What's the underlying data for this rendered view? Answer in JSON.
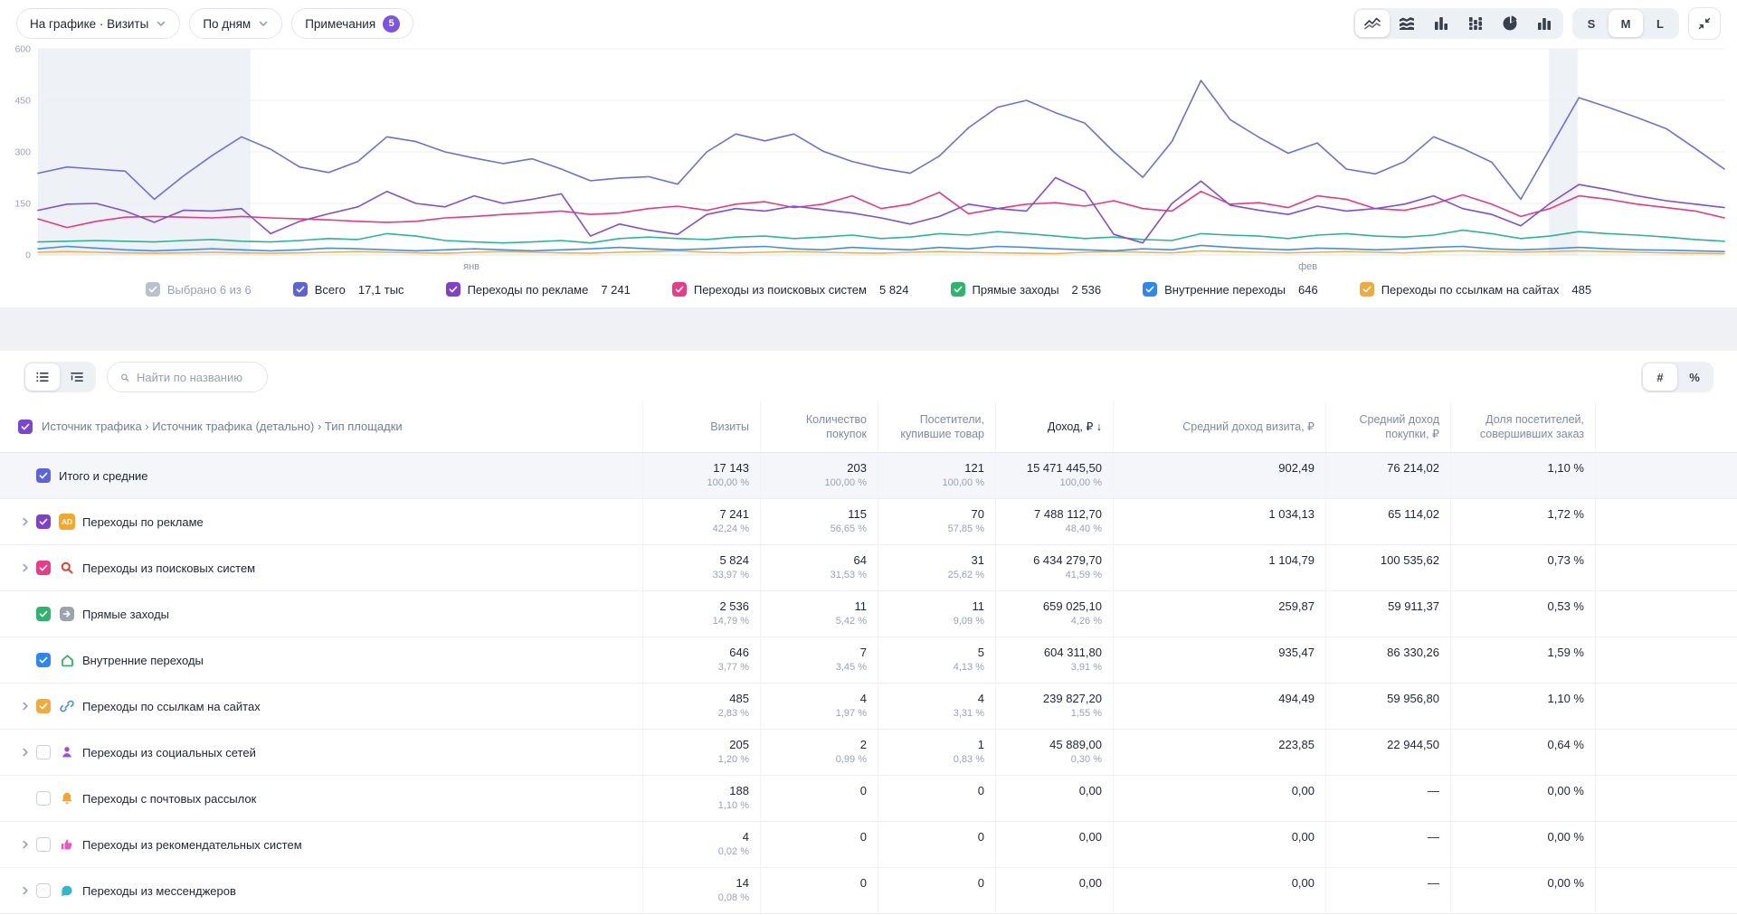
{
  "toolbar": {
    "metric_button": "На графике · Визиты",
    "period_button": "По дням",
    "notes_button": "Примечания",
    "notes_count": "5"
  },
  "chart_controls": {
    "type_icons": [
      "line-chart",
      "stacked-area-chart",
      "bar-chart",
      "stacked-bar-chart",
      "pie-chart",
      "histogram"
    ],
    "active_type": "line-chart",
    "sizes": [
      "S",
      "M",
      "L"
    ],
    "active_size": "M",
    "collapse_icon": "collapse-icon"
  },
  "chart_data": {
    "type": "line",
    "x_unit": "day",
    "x_month_labels": [
      "янв",
      "фев"
    ],
    "x_month_positions": [
      0.257,
      0.753
    ],
    "ylim": [
      0,
      600
    ],
    "y_ticks": [
      0,
      150,
      300,
      450,
      600
    ],
    "grid": true,
    "legend_position": "bottom",
    "highlight_bands": [
      {
        "from": 0.0,
        "to": 0.126
      },
      {
        "from": 0.896,
        "to": 0.913
      }
    ],
    "series": [
      {
        "name": "Всего",
        "color": "#6d6fe0",
        "total_label": "17,1 тыс",
        "values": [
          238,
          256,
          250,
          244,
          162,
          230,
          290,
          344,
          308,
          256,
          240,
          272,
          344,
          330,
          300,
          282,
          266,
          280,
          250,
          216,
          224,
          228,
          206,
          300,
          352,
          332,
          352,
          302,
          272,
          252,
          238,
          288,
          370,
          430,
          450,
          414,
          384,
          300,
          226,
          330,
          508,
          394,
          342,
          296,
          326,
          250,
          236,
          272,
          344,
          310,
          270,
          162,
          310,
          458,
          430,
          400,
          368,
          310,
          250
        ]
      },
      {
        "name": "Переходы по рекламе",
        "color": "#7e4fd8",
        "total_label": "7 241",
        "values": [
          130,
          148,
          150,
          128,
          95,
          130,
          128,
          135,
          62,
          98,
          120,
          140,
          185,
          150,
          140,
          172,
          150,
          162,
          178,
          55,
          90,
          72,
          60,
          118,
          135,
          128,
          142,
          132,
          122,
          108,
          90,
          112,
          148,
          135,
          128,
          225,
          185,
          60,
          35,
          150,
          215,
          145,
          130,
          118,
          142,
          128,
          135,
          148,
          172,
          135,
          118,
          85,
          150,
          205,
          190,
          172,
          158,
          148,
          138
        ]
      },
      {
        "name": "Переходы из поисковых систем",
        "color": "#e83a80",
        "total_label": "5 824",
        "values": [
          105,
          80,
          98,
          110,
          112,
          110,
          108,
          112,
          108,
          105,
          102,
          98,
          95,
          98,
          108,
          112,
          118,
          122,
          128,
          118,
          122,
          135,
          142,
          130,
          148,
          155,
          138,
          148,
          172,
          135,
          148,
          182,
          120,
          135,
          148,
          152,
          142,
          158,
          135,
          128,
          185,
          148,
          152,
          138,
          172,
          162,
          135,
          130,
          148,
          175,
          148,
          112,
          135,
          172,
          162,
          148,
          138,
          128,
          108
        ]
      },
      {
        "name": "Прямые заходы",
        "color": "#2bb595",
        "total_label": "2 536",
        "values": [
          38,
          40,
          42,
          40,
          38,
          42,
          45,
          40,
          38,
          42,
          48,
          45,
          62,
          55,
          42,
          38,
          35,
          38,
          42,
          35,
          48,
          52,
          48,
          45,
          52,
          55,
          48,
          52,
          58,
          48,
          52,
          62,
          58,
          68,
          62,
          55,
          48,
          52,
          45,
          42,
          62,
          58,
          55,
          48,
          58,
          62,
          55,
          52,
          58,
          72,
          62,
          48,
          55,
          68,
          62,
          58,
          52,
          45,
          40
        ]
      },
      {
        "name": "Внутренние переходы",
        "color": "#3f8ef2",
        "total_label": "646",
        "values": [
          18,
          25,
          20,
          15,
          12,
          15,
          18,
          15,
          12,
          15,
          20,
          18,
          15,
          12,
          15,
          18,
          15,
          12,
          15,
          18,
          22,
          18,
          15,
          18,
          22,
          25,
          18,
          15,
          22,
          18,
          15,
          22,
          18,
          25,
          22,
          18,
          15,
          12,
          18,
          15,
          28,
          22,
          18,
          15,
          20,
          18,
          15,
          18,
          22,
          25,
          18,
          15,
          18,
          22,
          18,
          15,
          14,
          12,
          10
        ]
      },
      {
        "name": "Переходы по ссылкам на сайтах",
        "color": "#f0b04a",
        "total_label": "485",
        "values": [
          8,
          10,
          8,
          6,
          5,
          6,
          8,
          6,
          5,
          6,
          8,
          10,
          8,
          6,
          5,
          8,
          10,
          8,
          6,
          5,
          8,
          10,
          12,
          8,
          6,
          8,
          10,
          8,
          6,
          5,
          8,
          10,
          8,
          6,
          5,
          4,
          8,
          10,
          8,
          6,
          12,
          10,
          8,
          6,
          8,
          10,
          8,
          6,
          10,
          12,
          10,
          8,
          10,
          12,
          10,
          8,
          6,
          5,
          4
        ]
      }
    ]
  },
  "legend": {
    "selected": {
      "label": "Выбрано 6 из 6",
      "color": "#b9c1cc"
    },
    "items": [
      {
        "label": "Всего",
        "value": "17,1 тыс",
        "color": "#5d63d8"
      },
      {
        "label": "Переходы по рекламе",
        "value": "7 241",
        "color": "#8040cc"
      },
      {
        "label": "Переходы из поисковых систем",
        "value": "5 824",
        "color": "#e83d86"
      },
      {
        "label": "Прямые заходы",
        "value": "2 536",
        "color": "#2eb56d"
      },
      {
        "label": "Внутренние переходы",
        "value": "646",
        "color": "#2e87f0"
      },
      {
        "label": "Переходы по ссылкам на сайтах",
        "value": "485",
        "color": "#f0ab3c"
      }
    ]
  },
  "table_controls": {
    "view_icons": [
      "flat-list",
      "tree-list"
    ],
    "active_view": "flat-list",
    "search_placeholder": "Найти по названию",
    "number_toggle": [
      "#",
      "%"
    ],
    "active_number_toggle": "#"
  },
  "table": {
    "columns": [
      {
        "label": "Источник трафика › Источник трафика (детально) › Тип площадки",
        "type": "name"
      },
      {
        "label": "Визиты"
      },
      {
        "label": "Количество покупок"
      },
      {
        "label": "Посетители, купившие товар"
      },
      {
        "label": "Доход, ₽",
        "sorted": "desc"
      },
      {
        "label": "Средний доход визита, ₽"
      },
      {
        "label": "Средний доход покупки, ₽"
      },
      {
        "label": "Доля посетителей, совершивших заказ"
      }
    ],
    "rows": [
      {
        "name": "Итого и средние",
        "icon": null,
        "checked": true,
        "color": "#5d63d8",
        "expandable": false,
        "highlight": true,
        "cells": [
          [
            "17 143",
            "100,00 %"
          ],
          [
            "203",
            "100,00 %"
          ],
          [
            "121",
            "100,00 %"
          ],
          [
            "15 471 445,50",
            "100,00 %"
          ],
          [
            "902,49",
            null
          ],
          [
            "76 214,02",
            null
          ],
          [
            "1,10 %",
            null
          ]
        ]
      },
      {
        "name": "Переходы по рекламе",
        "icon": "ad",
        "checked": true,
        "color": "#8040cc",
        "expandable": true,
        "cells": [
          [
            "7 241",
            "42,24 %"
          ],
          [
            "115",
            "56,65 %"
          ],
          [
            "70",
            "57,85 %"
          ],
          [
            "7 488 112,70",
            "48,40 %"
          ],
          [
            "1 034,13",
            null
          ],
          [
            "65 114,02",
            null
          ],
          [
            "1,72 %",
            null
          ]
        ]
      },
      {
        "name": "Переходы из поисковых систем",
        "icon": "search",
        "checked": true,
        "color": "#e83d86",
        "expandable": true,
        "cells": [
          [
            "5 824",
            "33,97 %"
          ],
          [
            "64",
            "31,53 %"
          ],
          [
            "31",
            "25,62 %"
          ],
          [
            "6 434 279,70",
            "41,59 %"
          ],
          [
            "1 104,79",
            null
          ],
          [
            "100 535,62",
            null
          ],
          [
            "0,73 %",
            null
          ]
        ]
      },
      {
        "name": "Прямые заходы",
        "icon": "direct",
        "checked": true,
        "color": "#2eb56d",
        "expandable": false,
        "cells": [
          [
            "2 536",
            "14,79 %"
          ],
          [
            "11",
            "5,42 %"
          ],
          [
            "11",
            "9,09 %"
          ],
          [
            "659 025,10",
            "4,26 %"
          ],
          [
            "259,87",
            null
          ],
          [
            "59 911,37",
            null
          ],
          [
            "0,53 %",
            null
          ]
        ]
      },
      {
        "name": "Внутренние переходы",
        "icon": "internal",
        "checked": true,
        "color": "#2e87f0",
        "expandable": false,
        "cells": [
          [
            "646",
            "3,77 %"
          ],
          [
            "7",
            "3,45 %"
          ],
          [
            "5",
            "4,13 %"
          ],
          [
            "604 311,80",
            "3,91 %"
          ],
          [
            "935,47",
            null
          ],
          [
            "86 330,26",
            null
          ],
          [
            "1,59 %",
            null
          ]
        ]
      },
      {
        "name": "Переходы по ссылкам на сайтах",
        "icon": "link",
        "checked": true,
        "color": "#f0ab3c",
        "expandable": true,
        "cells": [
          [
            "485",
            "2,83 %"
          ],
          [
            "4",
            "1,97 %"
          ],
          [
            "4",
            "3,31 %"
          ],
          [
            "239 827,20",
            "1,55 %"
          ],
          [
            "494,49",
            null
          ],
          [
            "59 956,80",
            null
          ],
          [
            "1,10 %",
            null
          ]
        ]
      },
      {
        "name": "Переходы из социальных сетей",
        "icon": "social",
        "checked": false,
        "color": null,
        "expandable": true,
        "cells": [
          [
            "205",
            "1,20 %"
          ],
          [
            "2",
            "0,99 %"
          ],
          [
            "1",
            "0,83 %"
          ],
          [
            "45 889,00",
            "0,30 %"
          ],
          [
            "223,85",
            null
          ],
          [
            "22 944,50",
            null
          ],
          [
            "0,64 %",
            null
          ]
        ]
      },
      {
        "name": "Переходы с почтовых рассылок",
        "icon": "mail",
        "checked": false,
        "color": null,
        "expandable": false,
        "cells": [
          [
            "188",
            "1,10 %"
          ],
          [
            "0",
            null
          ],
          [
            "0",
            null
          ],
          [
            "0,00",
            null
          ],
          [
            "0,00",
            null
          ],
          [
            "—",
            null
          ],
          [
            "0,00 %",
            null
          ]
        ]
      },
      {
        "name": "Переходы из рекомендательных систем",
        "icon": "recommend",
        "checked": false,
        "color": null,
        "expandable": true,
        "cells": [
          [
            "4",
            "0,02 %"
          ],
          [
            "0",
            null
          ],
          [
            "0",
            null
          ],
          [
            "0,00",
            null
          ],
          [
            "0,00",
            null
          ],
          [
            "—",
            null
          ],
          [
            "0,00 %",
            null
          ]
        ]
      },
      {
        "name": "Переходы из мессенджеров",
        "icon": "messenger",
        "checked": false,
        "color": null,
        "expandable": true,
        "cells": [
          [
            "14",
            "0,08 %"
          ],
          [
            "0",
            null
          ],
          [
            "0",
            null
          ],
          [
            "0,00",
            null
          ],
          [
            "0,00",
            null
          ],
          [
            "—",
            null
          ],
          [
            "0,00 %",
            null
          ]
        ]
      }
    ]
  },
  "icon_colors": {
    "ad": "#f5a62b",
    "search": "#e0402f",
    "direct": "#9aa3ae",
    "internal": "#34b36a",
    "link": "#3e8df5",
    "social": "#9a4fd6",
    "mail": "#f5a62b",
    "recommend": "#e858b8",
    "messenger": "#2fb8c6"
  }
}
